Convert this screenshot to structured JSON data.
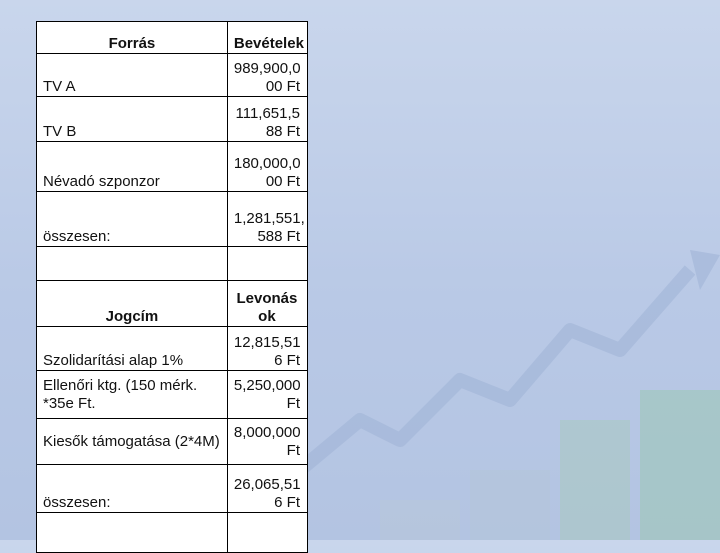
{
  "table1": {
    "header": [
      "Forrás",
      "Bevételek"
    ],
    "rows": [
      {
        "label": "TV   A",
        "value": "989,900,0 00 Ft"
      },
      {
        "label": "TV   B",
        "value": "111,651,5 88 Ft"
      },
      {
        "label": "Névadó szponzor",
        "value": "180,000,0 00 Ft"
      },
      {
        "label": "összesen:",
        "value": "1,281,551, 588 Ft"
      }
    ]
  },
  "table2": {
    "header": [
      "Jogcím",
      "Levonás ok"
    ],
    "rows": [
      {
        "label": "Szolidarítási alap 1%",
        "value": "12,815,51 6 Ft"
      },
      {
        "label": "Ellenőri ktg. (150 mérk. *35e Ft.",
        "value": "5,250,000 Ft"
      },
      {
        "label": "Kiesők támogatása (2*4M)",
        "value": "8,000,000 Ft"
      },
      {
        "label": "összesen:",
        "value": "26,065,51 6 Ft"
      }
    ]
  },
  "colors": {
    "background": "#c1d0ea",
    "table_bg": "#ffffff",
    "table_border": "#000000"
  }
}
